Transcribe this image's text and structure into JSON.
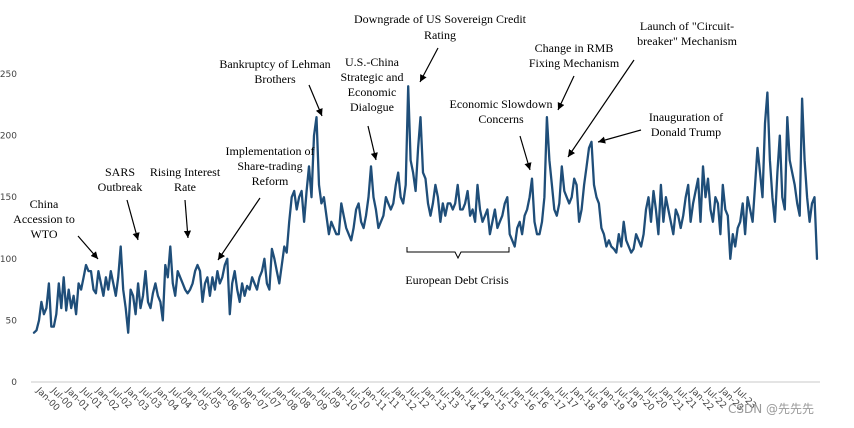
{
  "chart_data": {
    "type": "line",
    "title": "",
    "xlabel": "",
    "ylabel": "",
    "ylim": [
      0,
      250
    ],
    "yticks": [
      0,
      50,
      100,
      150,
      200,
      250
    ],
    "grid": false,
    "legend": "none",
    "line_color": "#1f4e79",
    "x_tick_labels": [
      "Jan-00",
      "Jul-00",
      "Jan-01",
      "Jul-01",
      "Jan-02",
      "Jul-02",
      "Jan-03",
      "Jul-03",
      "Jan-04",
      "Jul-04",
      "Jan-05",
      "Jul-05",
      "Jan-06",
      "Jul-06",
      "Jan-07",
      "Jul-07",
      "Jan-08",
      "Jul-08",
      "Jan-09",
      "Jul-09",
      "Jan-10",
      "Jul-10",
      "Jan-11",
      "Jul-11",
      "Jan-12",
      "Jul-12",
      "Jan-13",
      "Jul-13",
      "Jan-14",
      "Jul-14",
      "Jan-15",
      "Jul-15",
      "Jan-16",
      "Jul-16",
      "Jan-17",
      "Jul-17",
      "Jan-18",
      "Jul-18",
      "Jan-19",
      "Jul-19",
      "Jan-20",
      "Jul-20",
      "Jan-21",
      "Jul-21",
      "Jan-22",
      "Jul-22",
      "Jan-23",
      "Jul-23"
    ],
    "series": [
      {
        "name": "",
        "x_start": "Jan-00",
        "frequency": "monthly",
        "values": [
          40,
          42,
          50,
          65,
          55,
          60,
          80,
          45,
          45,
          55,
          80,
          60,
          85,
          58,
          75,
          60,
          70,
          55,
          80,
          75,
          85,
          95,
          90,
          90,
          75,
          72,
          90,
          80,
          70,
          85,
          75,
          90,
          80,
          70,
          85,
          110,
          75,
          60,
          40,
          75,
          70,
          55,
          80,
          60,
          70,
          90,
          65,
          60,
          72,
          80,
          70,
          65,
          50,
          95,
          85,
          110,
          80,
          70,
          90,
          85,
          80,
          75,
          72,
          75,
          80,
          90,
          95,
          90,
          65,
          80,
          85,
          70,
          85,
          75,
          90,
          80,
          85,
          95,
          100,
          55,
          80,
          90,
          75,
          65,
          80,
          70,
          78,
          75,
          85,
          80,
          75,
          85,
          90,
          100,
          80,
          75,
          108,
          100,
          90,
          80,
          95,
          110,
          105,
          130,
          150,
          155,
          140,
          150,
          155,
          130,
          155,
          175,
          150,
          200,
          215,
          160,
          145,
          150,
          135,
          120,
          130,
          125,
          120,
          120,
          145,
          135,
          125,
          120,
          115,
          125,
          140,
          145,
          130,
          125,
          135,
          150,
          175,
          150,
          140,
          125,
          130,
          135,
          150,
          145,
          140,
          145,
          160,
          170,
          150,
          145,
          160,
          240,
          180,
          170,
          155,
          190,
          215,
          170,
          165,
          145,
          135,
          145,
          160,
          150,
          130,
          145,
          135,
          145,
          145,
          140,
          145,
          160,
          140,
          140,
          145,
          155,
          135,
          140,
          130,
          160,
          140,
          130,
          135,
          140,
          120,
          130,
          140,
          125,
          130,
          135,
          145,
          150,
          120,
          115,
          110,
          125,
          130,
          120,
          135,
          140,
          150,
          165,
          130,
          120,
          120,
          130,
          150,
          215,
          180,
          160,
          140,
          135,
          145,
          175,
          155,
          150,
          145,
          150,
          165,
          160,
          130,
          140,
          160,
          175,
          190,
          195,
          160,
          150,
          145,
          125,
          120,
          110,
          115,
          110,
          108,
          105,
          120,
          110,
          130,
          115,
          110,
          105,
          108,
          120,
          115,
          110,
          120,
          140,
          150,
          130,
          155,
          140,
          120,
          160,
          130,
          150,
          140,
          130,
          120,
          140,
          135,
          125,
          135,
          150,
          160,
          130,
          145,
          155,
          165,
          130,
          175,
          150,
          165,
          140,
          130,
          150,
          145,
          120,
          160,
          140,
          135,
          100,
          120,
          110,
          125,
          130,
          145,
          120,
          150,
          140,
          130,
          160,
          190,
          170,
          150,
          210,
          235,
          180,
          150,
          130,
          170,
          200,
          150,
          140,
          215,
          180,
          170,
          160,
          145,
          135,
          230,
          180,
          150,
          130,
          145,
          150,
          100
        ]
      }
    ],
    "annotations": [
      {
        "lines": [
          "China",
          "Accession to",
          "WTO"
        ]
      },
      {
        "lines": [
          "SARS",
          "Outbreak"
        ]
      },
      {
        "lines": [
          "Rising Interest",
          "Rate"
        ]
      },
      {
        "lines": [
          "Implementation of",
          "Share-trading",
          "Reform"
        ]
      },
      {
        "lines": [
          "Bankruptcy of Lehman",
          "Brothers"
        ]
      },
      {
        "lines": [
          "U.S.-China",
          "Strategic and",
          "Economic",
          "Dialogue"
        ]
      },
      {
        "lines": [
          "Downgrade of US Sovereign Credit",
          "Rating"
        ]
      },
      {
        "lines": [
          "European Debt Crisis"
        ]
      },
      {
        "lines": [
          "Economic Slowdown",
          "Concerns"
        ]
      },
      {
        "lines": [
          "Change in RMB",
          "Fixing Mechanism"
        ]
      },
      {
        "lines": [
          "Launch of \"Circuit-",
          "breaker\" Mechanism"
        ]
      },
      {
        "lines": [
          "Inauguration of",
          "Donald Trump"
        ]
      }
    ]
  },
  "watermark": "CSDN @先先先"
}
